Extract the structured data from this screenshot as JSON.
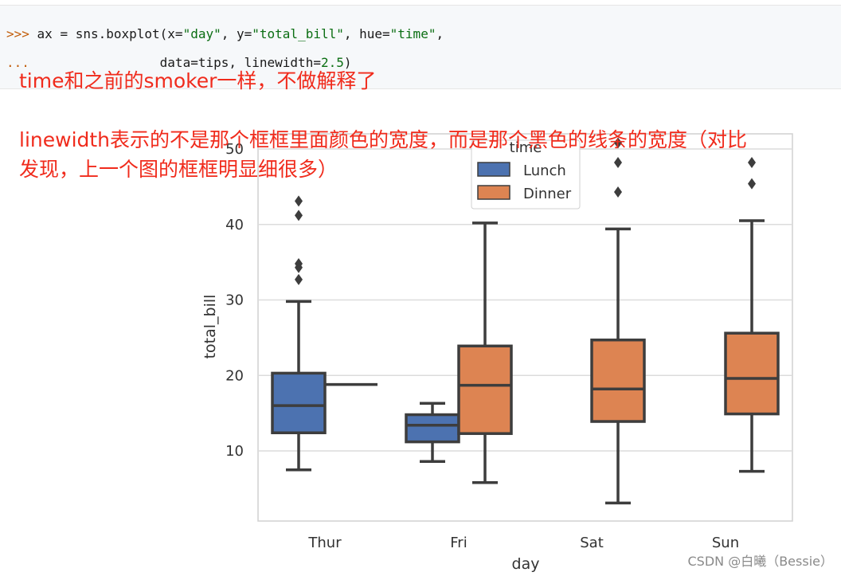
{
  "code": {
    "line1_prompt": ">>>",
    "line1_pre": " ax = sns.boxplot(x=",
    "line1_s1": "\"day\"",
    "line1_mid1": ", y=",
    "line1_s2": "\"total_bill\"",
    "line1_mid2": ", hue=",
    "line1_s3": "\"time\"",
    "line1_end": ",",
    "line2_prompt": "...",
    "line2_pre": "                 data=tips, linewidth=",
    "line2_num": "2.5",
    "line2_end": ")"
  },
  "annotations": {
    "note1": "time和之前的smoker一样，不做解释了",
    "note2_line1": "linewidth表示的不是那个框框里面颜色的宽度，而是那个黑色的线条的宽度（对比",
    "note2_line2": "发现，上一个图的框框明显细很多）"
  },
  "watermark": "CSDN @白曦（Bessie）",
  "chart_data": {
    "type": "box",
    "xlabel": "day",
    "ylabel": "total_bill",
    "categories": [
      "Thur",
      "Fri",
      "Sat",
      "Sun"
    ],
    "yticks": [
      10,
      20,
      30,
      40,
      50
    ],
    "ylim": [
      0,
      53
    ],
    "grid": true,
    "legend": {
      "title": "time",
      "placement": "top-center"
    },
    "series": [
      {
        "name": "Lunch",
        "color": "#4c72b0",
        "boxes": [
          {
            "category": "Thur",
            "whisker_low": 7.5,
            "q1": 12.4,
            "median": 16.0,
            "q3": 20.3,
            "whisker_high": 29.8,
            "outliers": [
              32.7,
              34.3,
              34.8,
              41.2,
              43.1
            ]
          },
          {
            "category": "Fri",
            "whisker_low": 8.6,
            "q1": 11.2,
            "median": 13.4,
            "q3": 14.8,
            "whisker_high": 16.3,
            "outliers": []
          }
        ]
      },
      {
        "name": "Dinner",
        "color": "#dd8452",
        "boxes": [
          {
            "category": "Thur",
            "whisker_low": 18.8,
            "q1": 18.8,
            "median": 18.8,
            "q3": 18.8,
            "whisker_high": 18.8,
            "outliers": []
          },
          {
            "category": "Fri",
            "whisker_low": 5.8,
            "q1": 12.3,
            "median": 18.7,
            "q3": 23.9,
            "whisker_high": 40.2,
            "outliers": []
          },
          {
            "category": "Sat",
            "whisker_low": 3.1,
            "q1": 13.9,
            "median": 18.2,
            "q3": 24.7,
            "whisker_high": 39.4,
            "outliers": [
              44.3,
              48.2,
              50.8
            ]
          },
          {
            "category": "Sun",
            "whisker_low": 7.3,
            "q1": 14.9,
            "median": 19.6,
            "q3": 25.6,
            "whisker_high": 40.5,
            "outliers": [
              45.4,
              48.2
            ]
          }
        ]
      }
    ]
  }
}
